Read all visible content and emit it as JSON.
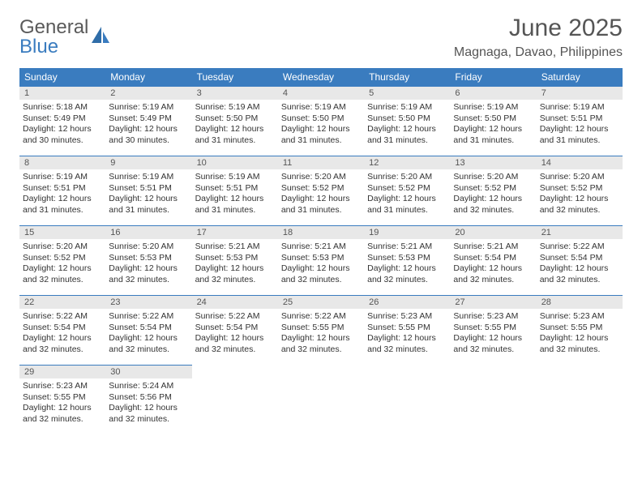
{
  "brand": {
    "line1": "General",
    "line2": "Blue"
  },
  "title": {
    "month": "June 2025",
    "location": "Magnaga, Davao, Philippines"
  },
  "colors": {
    "header_bg": "#3a7cbf",
    "header_text": "#ffffff",
    "daynum_bg": "#e8e8e8",
    "text": "#333333",
    "border": "#3a7cbf"
  },
  "weekdays": [
    "Sunday",
    "Monday",
    "Tuesday",
    "Wednesday",
    "Thursday",
    "Friday",
    "Saturday"
  ],
  "days": [
    {
      "n": 1,
      "sr": "5:18 AM",
      "ss": "5:49 PM",
      "dl": "12 hours and 30 minutes."
    },
    {
      "n": 2,
      "sr": "5:19 AM",
      "ss": "5:49 PM",
      "dl": "12 hours and 30 minutes."
    },
    {
      "n": 3,
      "sr": "5:19 AM",
      "ss": "5:50 PM",
      "dl": "12 hours and 31 minutes."
    },
    {
      "n": 4,
      "sr": "5:19 AM",
      "ss": "5:50 PM",
      "dl": "12 hours and 31 minutes."
    },
    {
      "n": 5,
      "sr": "5:19 AM",
      "ss": "5:50 PM",
      "dl": "12 hours and 31 minutes."
    },
    {
      "n": 6,
      "sr": "5:19 AM",
      "ss": "5:50 PM",
      "dl": "12 hours and 31 minutes."
    },
    {
      "n": 7,
      "sr": "5:19 AM",
      "ss": "5:51 PM",
      "dl": "12 hours and 31 minutes."
    },
    {
      "n": 8,
      "sr": "5:19 AM",
      "ss": "5:51 PM",
      "dl": "12 hours and 31 minutes."
    },
    {
      "n": 9,
      "sr": "5:19 AM",
      "ss": "5:51 PM",
      "dl": "12 hours and 31 minutes."
    },
    {
      "n": 10,
      "sr": "5:19 AM",
      "ss": "5:51 PM",
      "dl": "12 hours and 31 minutes."
    },
    {
      "n": 11,
      "sr": "5:20 AM",
      "ss": "5:52 PM",
      "dl": "12 hours and 31 minutes."
    },
    {
      "n": 12,
      "sr": "5:20 AM",
      "ss": "5:52 PM",
      "dl": "12 hours and 31 minutes."
    },
    {
      "n": 13,
      "sr": "5:20 AM",
      "ss": "5:52 PM",
      "dl": "12 hours and 32 minutes."
    },
    {
      "n": 14,
      "sr": "5:20 AM",
      "ss": "5:52 PM",
      "dl": "12 hours and 32 minutes."
    },
    {
      "n": 15,
      "sr": "5:20 AM",
      "ss": "5:52 PM",
      "dl": "12 hours and 32 minutes."
    },
    {
      "n": 16,
      "sr": "5:20 AM",
      "ss": "5:53 PM",
      "dl": "12 hours and 32 minutes."
    },
    {
      "n": 17,
      "sr": "5:21 AM",
      "ss": "5:53 PM",
      "dl": "12 hours and 32 minutes."
    },
    {
      "n": 18,
      "sr": "5:21 AM",
      "ss": "5:53 PM",
      "dl": "12 hours and 32 minutes."
    },
    {
      "n": 19,
      "sr": "5:21 AM",
      "ss": "5:53 PM",
      "dl": "12 hours and 32 minutes."
    },
    {
      "n": 20,
      "sr": "5:21 AM",
      "ss": "5:54 PM",
      "dl": "12 hours and 32 minutes."
    },
    {
      "n": 21,
      "sr": "5:22 AM",
      "ss": "5:54 PM",
      "dl": "12 hours and 32 minutes."
    },
    {
      "n": 22,
      "sr": "5:22 AM",
      "ss": "5:54 PM",
      "dl": "12 hours and 32 minutes."
    },
    {
      "n": 23,
      "sr": "5:22 AM",
      "ss": "5:54 PM",
      "dl": "12 hours and 32 minutes."
    },
    {
      "n": 24,
      "sr": "5:22 AM",
      "ss": "5:54 PM",
      "dl": "12 hours and 32 minutes."
    },
    {
      "n": 25,
      "sr": "5:22 AM",
      "ss": "5:55 PM",
      "dl": "12 hours and 32 minutes."
    },
    {
      "n": 26,
      "sr": "5:23 AM",
      "ss": "5:55 PM",
      "dl": "12 hours and 32 minutes."
    },
    {
      "n": 27,
      "sr": "5:23 AM",
      "ss": "5:55 PM",
      "dl": "12 hours and 32 minutes."
    },
    {
      "n": 28,
      "sr": "5:23 AM",
      "ss": "5:55 PM",
      "dl": "12 hours and 32 minutes."
    },
    {
      "n": 29,
      "sr": "5:23 AM",
      "ss": "5:55 PM",
      "dl": "12 hours and 32 minutes."
    },
    {
      "n": 30,
      "sr": "5:24 AM",
      "ss": "5:56 PM",
      "dl": "12 hours and 32 minutes."
    }
  ],
  "labels": {
    "sunrise": "Sunrise:",
    "sunset": "Sunset:",
    "daylight": "Daylight:"
  }
}
